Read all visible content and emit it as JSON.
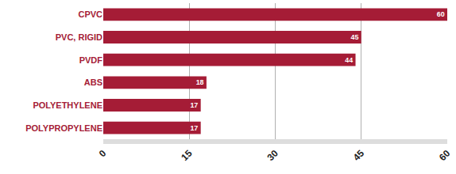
{
  "chart_data": {
    "type": "bar",
    "orientation": "horizontal",
    "categories": [
      "CPVC",
      "PVC, RIGID",
      "PVDF",
      "ABS",
      "POLYETHYLENE",
      "POLYPROPYLENE"
    ],
    "values": [
      60,
      45,
      44,
      18,
      17,
      17
    ],
    "color": "#a51c36",
    "xlim": [
      0,
      60
    ],
    "xticks": [
      0,
      15,
      30,
      45,
      60
    ],
    "grid": true,
    "data_labels": true
  }
}
